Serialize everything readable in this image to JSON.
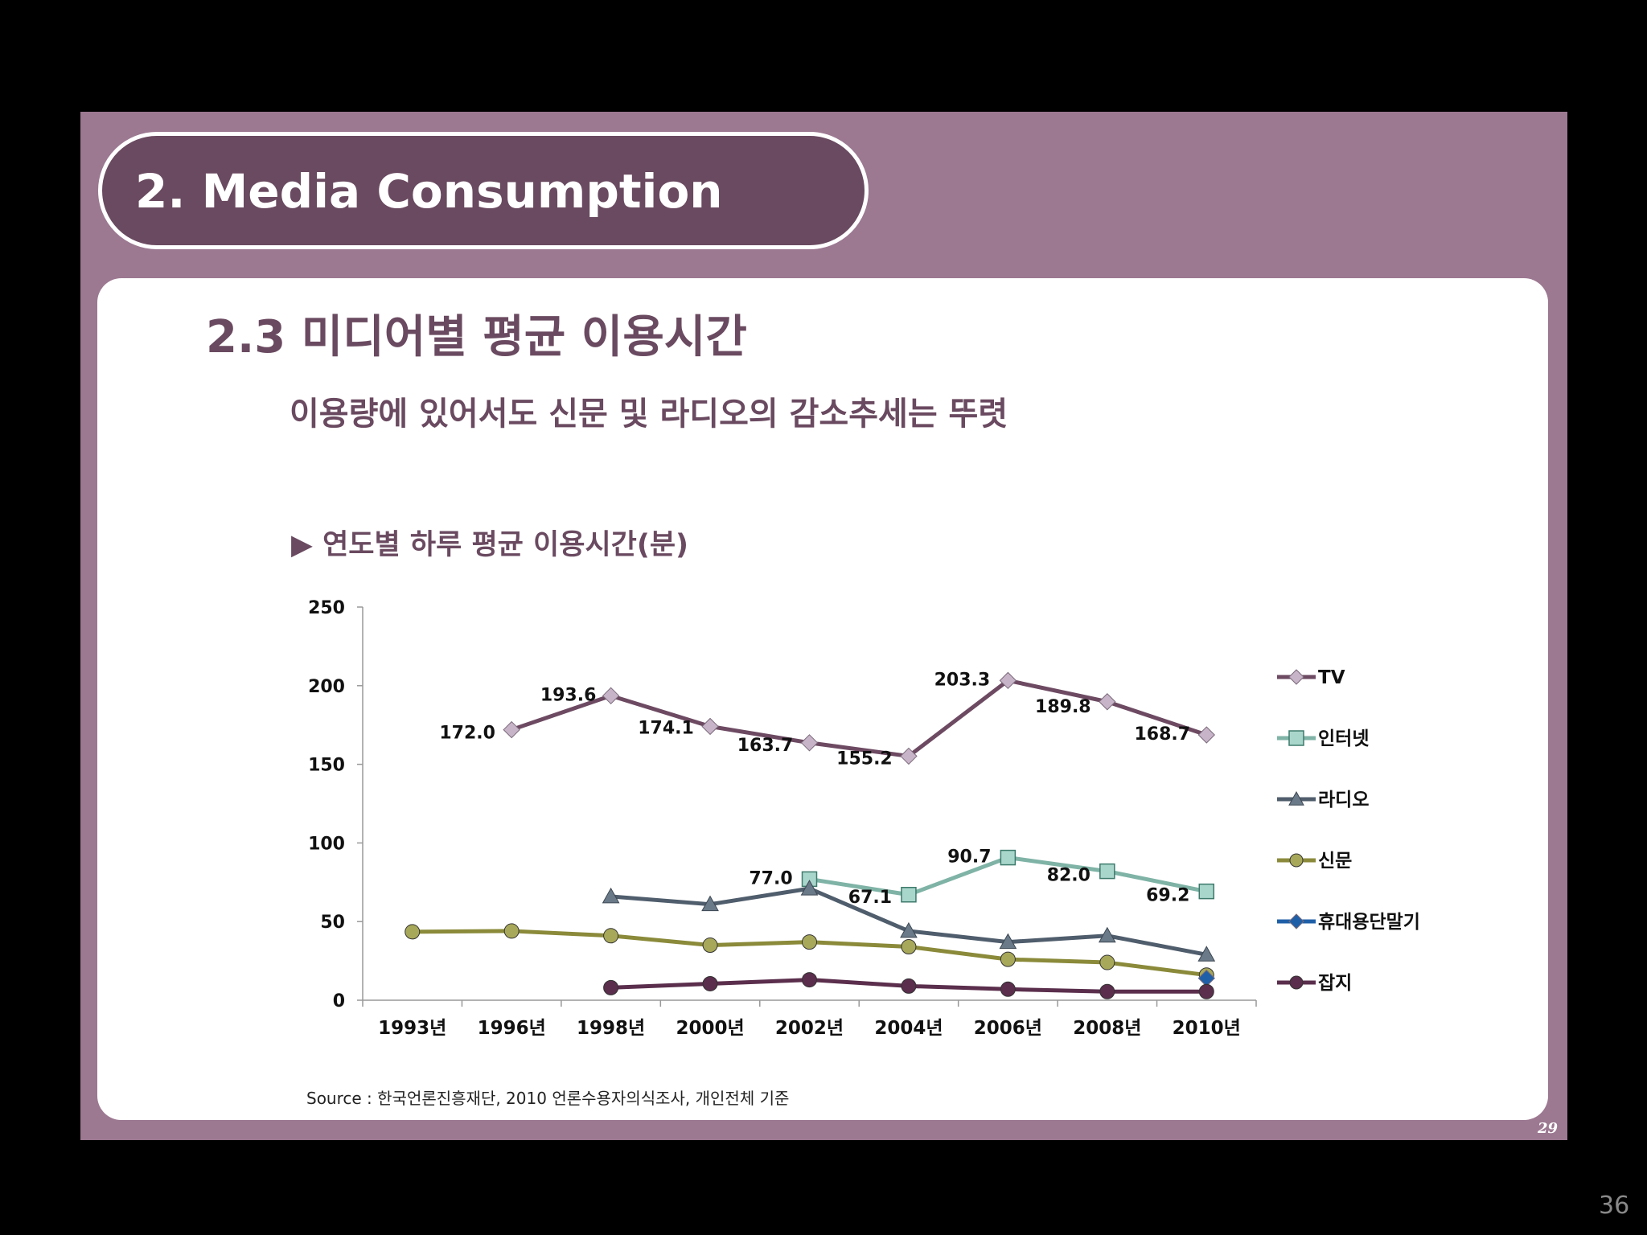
{
  "header": {
    "title": "2.  Media Consumption"
  },
  "section": {
    "title": "2.3  미디어별 평균 이용시간",
    "subtitle": "이용량에 있어서도 신문 및 라디오의 감소추세는 뚜렷"
  },
  "chart_title": "▶ 연도별 하루 평균 이용시간(분)",
  "source": "Source : 한국언론진흥재단,  2010 언론수용자의식조사, 개인전체 기준",
  "page_number": "29",
  "slide_counter": "36",
  "colors": {
    "slide_bg": "#9c7891",
    "pill_bg": "#6a4a60",
    "title_text": "#6a4a60"
  },
  "chart_data": {
    "type": "line",
    "categories": [
      "1993년",
      "1996년",
      "1998년",
      "2000년",
      "2002년",
      "2004년",
      "2006년",
      "2008년",
      "2010년"
    ],
    "ylim": [
      0,
      250
    ],
    "yticks": [
      0,
      50,
      100,
      150,
      200,
      250
    ],
    "grid": false,
    "legend_position": "right",
    "series": [
      {
        "name": "TV",
        "color": "#6d4a62",
        "marker": "diamond",
        "marker_color": "#c8b4c8",
        "values": [
          null,
          172.0,
          193.6,
          174.1,
          163.7,
          155.2,
          203.3,
          189.8,
          168.7
        ],
        "labels": [
          null,
          "172.0",
          "193.6",
          "174.1",
          "163.7",
          "155.2",
          "203.3",
          "189.8",
          "168.7"
        ]
      },
      {
        "name": "인터넷",
        "color": "#7fb3a6",
        "marker": "square",
        "marker_color": "#a9d6cb",
        "values": [
          null,
          null,
          null,
          null,
          77.0,
          67.1,
          90.7,
          82.0,
          69.2
        ],
        "labels": [
          null,
          null,
          null,
          null,
          "77.0",
          "67.1",
          "90.7",
          "82.0",
          "69.2"
        ]
      },
      {
        "name": "라디오",
        "color": "#4f5d6c",
        "marker": "triangle",
        "marker_color": "#6b7a88",
        "values": [
          null,
          null,
          66,
          61,
          71,
          44,
          37,
          41,
          29
        ],
        "labels": []
      },
      {
        "name": "신문",
        "color": "#8a8a3a",
        "marker": "circle",
        "marker_color": "#a8a85a",
        "values": [
          43.5,
          44,
          41,
          35,
          37,
          34,
          26,
          24,
          16
        ],
        "labels": []
      },
      {
        "name": "휴대용단말기",
        "color": "#1f5fa8",
        "marker": "diamond",
        "marker_color": "#1f5fa8",
        "values": [
          null,
          null,
          null,
          null,
          null,
          null,
          null,
          null,
          14
        ],
        "labels": []
      },
      {
        "name": "잡지",
        "color": "#5a2e4c",
        "marker": "circle",
        "marker_color": "#5a2e4c",
        "values": [
          null,
          null,
          8,
          10.5,
          13,
          9,
          7,
          5.5,
          5.5
        ],
        "labels": []
      }
    ]
  }
}
